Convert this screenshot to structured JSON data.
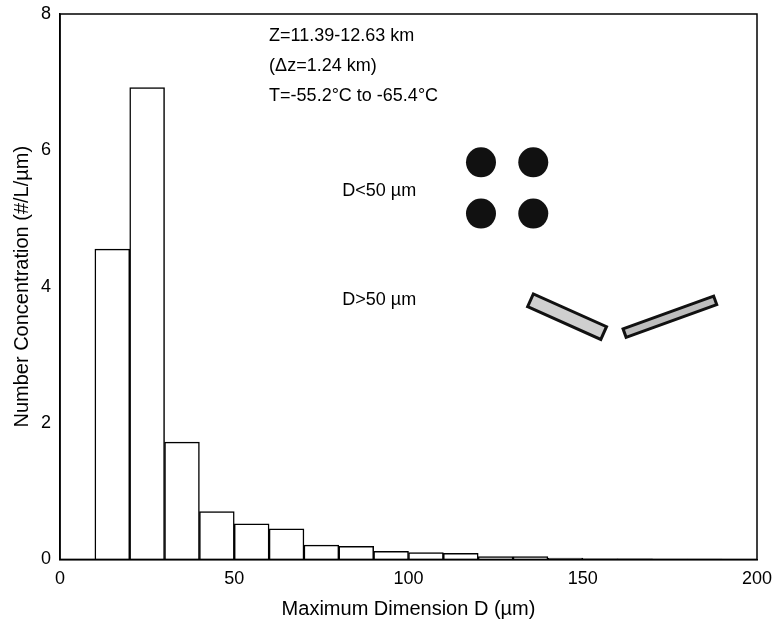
{
  "chart_data": {
    "type": "histogram",
    "annotations": [
      "Z=11.39-12.63 km",
      "(Δz=1.24 km)",
      "T=-55.2°C to -65.4°C",
      "D<50 µm",
      "D>50 µm"
    ],
    "x_label": "Maximum Dimension D (µm)",
    "y_label": "Number Concentration (#/L/µm)",
    "bins": [
      10,
      20,
      30,
      40,
      50,
      60,
      70,
      80,
      90,
      100,
      110,
      120,
      130,
      140,
      150,
      160,
      170,
      180,
      190,
      200
    ],
    "values": [
      4.55,
      6.92,
      1.72,
      0.7,
      0.52,
      0.45,
      0.21,
      0.19,
      0.12,
      0.1,
      0.09,
      0.04,
      0.04,
      0.02,
      0.01,
      0.01,
      0.005,
      0.005,
      0
    ],
    "color": "#ffffff",
    "xlim": [
      0,
      200
    ],
    "xticks": [
      0,
      50,
      100,
      150,
      200
    ],
    "ylim": [
      0,
      8
    ],
    "yticks": [
      0,
      2,
      4,
      6,
      8
    ],
    "grid": false
  }
}
